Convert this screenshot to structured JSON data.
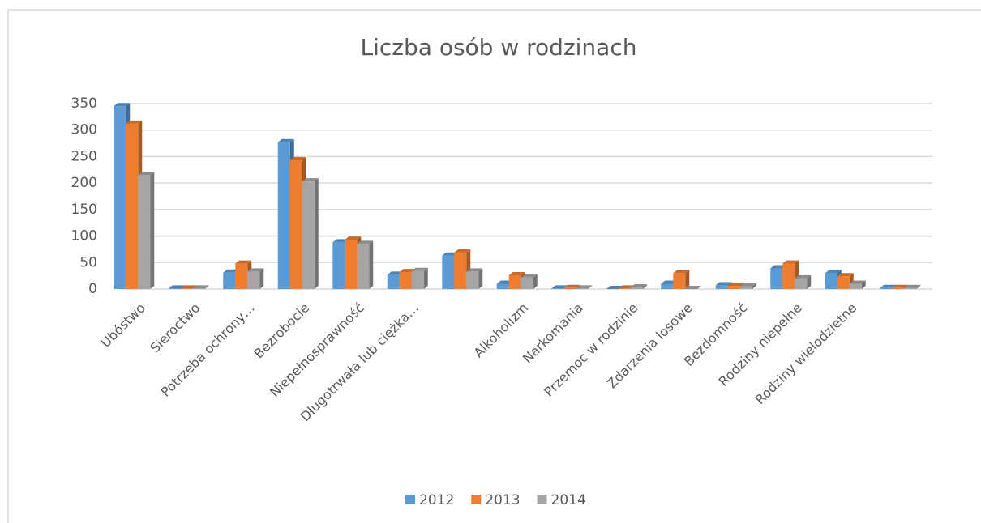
{
  "chart_data": {
    "type": "bar3d",
    "title": "Liczba osób w rodzinach",
    "categories": [
      "Ubóstwo",
      "Sieroctwo",
      "Potrzeba ochrony…",
      "Bezrobocie",
      "Niepełnosprawność",
      "Długotrwała lub ciężka…",
      null,
      "Alkoholizm",
      "Narkomania",
      "Przemoc w rodzinie",
      "Zdarzenia losowe",
      "Bezdomność",
      "Rodziny niepełne",
      "Rodziny wielodzietne",
      null
    ],
    "series": [
      {
        "name": "2012",
        "color": "#5b9bd5",
        "values": [
          345,
          1,
          31,
          277,
          88,
          27,
          63,
          10,
          1,
          0,
          10,
          7,
          39,
          30,
          2
        ]
      },
      {
        "name": "2013",
        "color": "#ed7d31",
        "values": [
          312,
          1,
          48,
          243,
          93,
          32,
          69,
          26,
          2,
          1,
          30,
          6,
          48,
          24,
          2
        ]
      },
      {
        "name": "2014",
        "color": "#a5a5a5",
        "values": [
          215,
          1,
          33,
          203,
          85,
          34,
          33,
          22,
          1,
          3,
          0,
          5,
          20,
          10,
          2
        ]
      }
    ],
    "ylim": [
      0,
      350
    ],
    "yticks": [
      0,
      50,
      100,
      150,
      200,
      250,
      300,
      350
    ],
    "grid": true,
    "legend": "bottom"
  }
}
